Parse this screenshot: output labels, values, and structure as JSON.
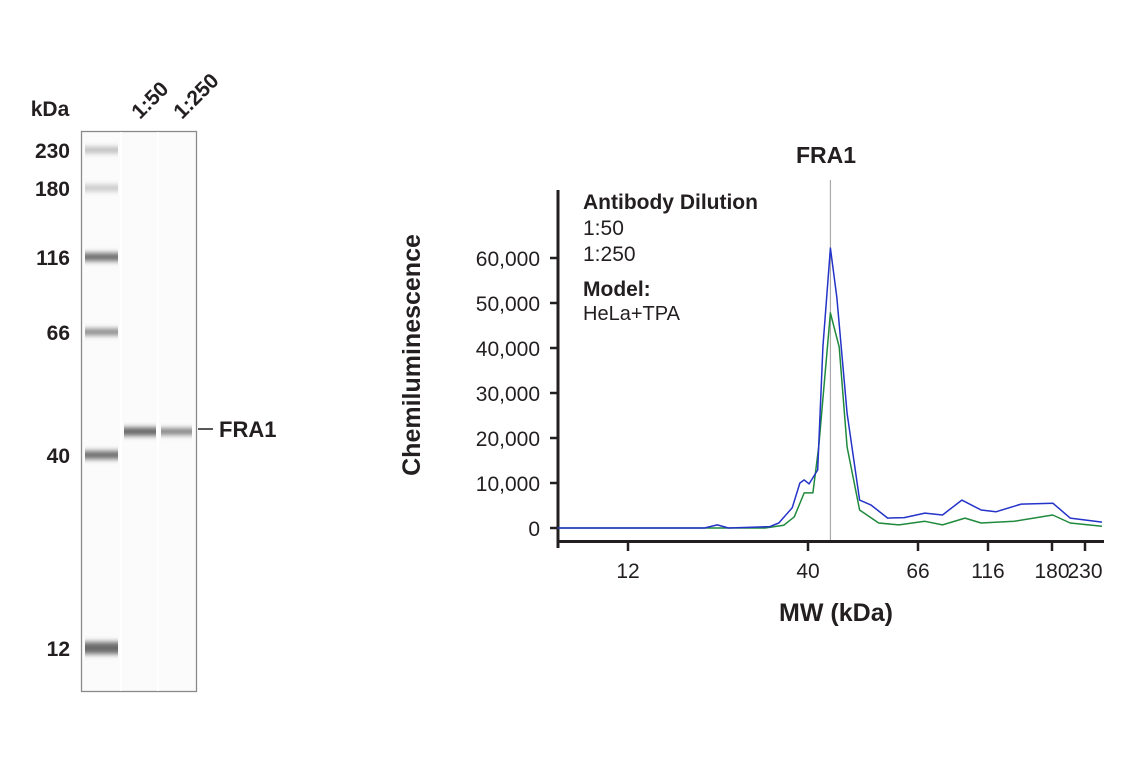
{
  "blot": {
    "unit_label": "kDa",
    "lanes": [
      "1:50",
      "1:250"
    ],
    "markers": [
      230,
      180,
      116,
      66,
      40,
      12
    ],
    "marker_intensity": [
      0.35,
      0.3,
      0.75,
      0.65,
      0.75,
      0.75
    ],
    "target_label": "FRA1",
    "target_mw": 44,
    "target_intensity": [
      0.8,
      0.7
    ]
  },
  "chart_data": {
    "type": "line",
    "title": "FRA1",
    "xlabel": "MW (kDa)",
    "ylabel": "Chemiluminescence",
    "x_scale": "log (piecewise, as ticked)",
    "xlim": [
      7.5,
      261
    ],
    "ylim": [
      0,
      70000
    ],
    "x_ticks": [
      12,
      40,
      66,
      116,
      180,
      230
    ],
    "y_ticks": [
      0,
      10000,
      20000,
      30000,
      40000,
      50000,
      60000
    ],
    "y_tick_labels": [
      "0",
      "10,000",
      "20,000",
      "30,000",
      "40,000",
      "50,000",
      "60,000"
    ],
    "grid": false,
    "marker_line_kda": 44.3,
    "legend": {
      "title": "Antibody Dilution",
      "placement": "top-left",
      "model_title": "Model:",
      "model_value": "HeLa+TPA"
    },
    "series": [
      {
        "name": "1:50",
        "color": "#2433c8",
        "x": [
          7.5,
          20,
          21.8,
          23.5,
          31,
          32.9,
          36,
          37.9,
          39,
          40.2,
          41.8,
          42.8,
          44.3,
          45.6,
          47.8,
          50.6,
          53.3,
          57.5,
          62,
          69.8,
          80.4,
          93.9,
          109.7,
          122.5,
          145.6,
          181.4,
          206,
          261
        ],
        "y": [
          0,
          0,
          700,
          0,
          300,
          1100,
          4500,
          10000,
          10700,
          9800,
          12900,
          40200,
          62200,
          51300,
          25500,
          6200,
          5100,
          2200,
          2300,
          3300,
          2900,
          6200,
          4000,
          3600,
          5300,
          5500,
          2200,
          1300
        ]
      },
      {
        "name": "1:250",
        "color": "#1f8a3c",
        "x": [
          7.5,
          30,
          34,
          36.5,
          39,
          40.9,
          42,
          44.3,
          46.1,
          47.8,
          50.6,
          55.2,
          60.5,
          69.8,
          80.4,
          96.4,
          109.7,
          139,
          181,
          206,
          261
        ],
        "y": [
          0,
          0,
          600,
          2500,
          7800,
          7800,
          18000,
          47800,
          40200,
          18000,
          4000,
          1100,
          700,
          1500,
          700,
          2200,
          1100,
          1500,
          2900,
          1100,
          400
        ]
      }
    ]
  }
}
